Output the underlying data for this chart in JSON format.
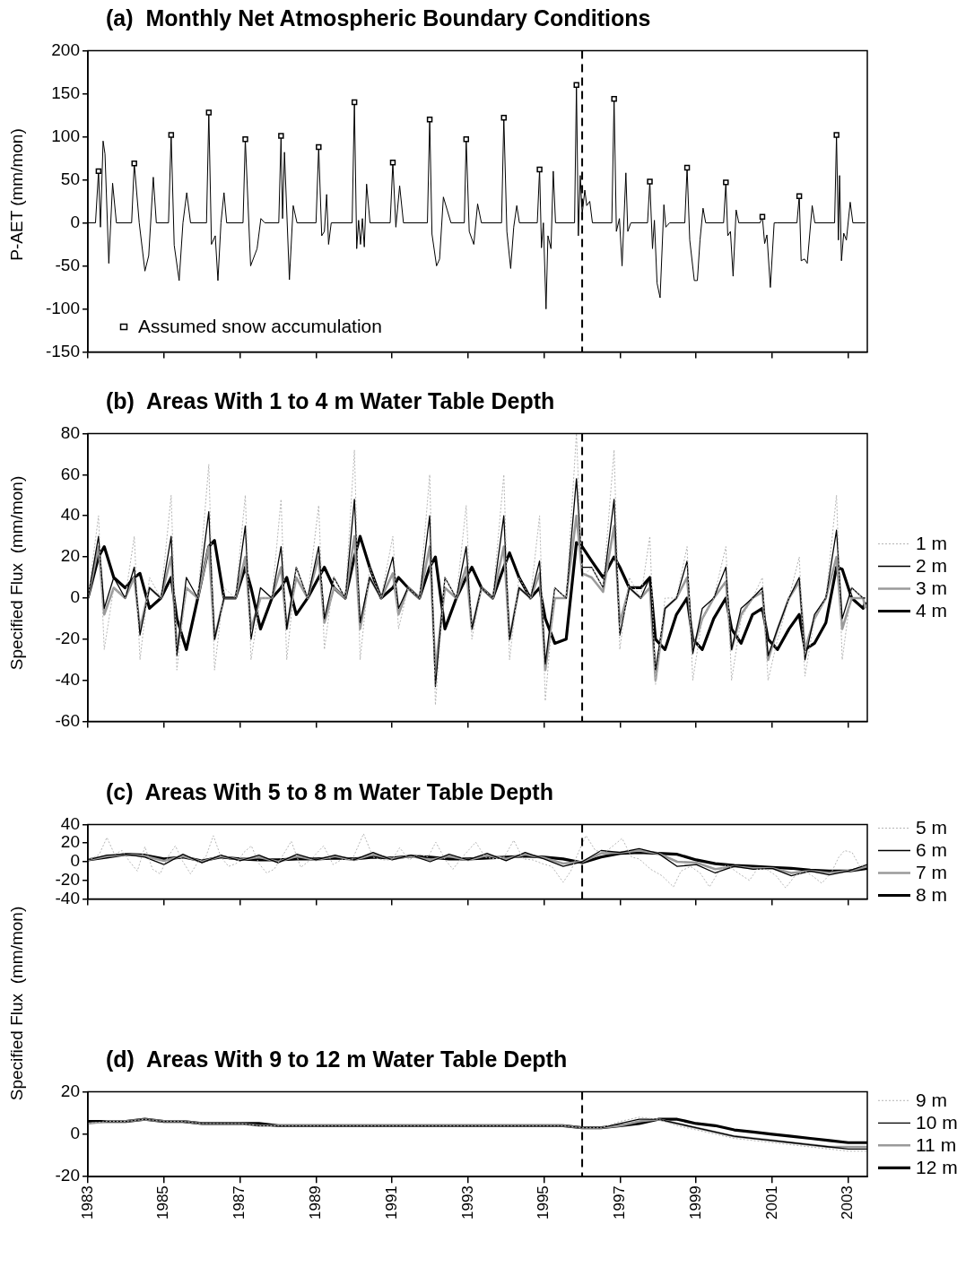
{
  "chart_data": [
    {
      "type": "line",
      "title": "(a)  Monthly Net Atmospheric Boundary Conditions",
      "ylabel": "P-AET (mm/mon)",
      "xlim": [
        1983,
        2003.5
      ],
      "xticks": [
        1983,
        1985,
        1987,
        1989,
        1991,
        1993,
        1995,
        1997,
        1999,
        2001,
        2003
      ],
      "ylim": [
        -150,
        200
      ],
      "yticks": [
        -150,
        -100,
        -50,
        0,
        50,
        100,
        150,
        200
      ],
      "tick_labels": "y",
      "legend": "bottom left",
      "ref_lines": [
        {
          "axis": "x",
          "value": 1996,
          "line_style": "dashed",
          "color": "#000000"
        }
      ],
      "series": [
        {
          "type": "line",
          "color": "#000000",
          "x": [
            1983.0,
            1983.2,
            1983.28,
            1983.33,
            1983.4,
            1983.45,
            1983.55,
            1983.65,
            1983.75,
            1984.15,
            1984.22,
            1984.35,
            1984.5,
            1984.6,
            1984.72,
            1984.8,
            1985.12,
            1985.19,
            1985.27,
            1985.4,
            1985.5,
            1985.6,
            1985.7,
            1986.12,
            1986.18,
            1986.25,
            1986.35,
            1986.42,
            1986.5,
            1986.58,
            1986.65,
            1987.08,
            1987.14,
            1987.28,
            1987.45,
            1987.55,
            1987.65,
            1988.02,
            1988.08,
            1988.12,
            1988.17,
            1988.3,
            1988.4,
            1988.5,
            1989.0,
            1989.07,
            1989.15,
            1989.22,
            1989.28,
            1989.33,
            1989.4,
            1989.95,
            1990.01,
            1990.07,
            1990.12,
            1990.17,
            1990.22,
            1990.27,
            1990.33,
            1990.42,
            1990.95,
            1991.02,
            1991.1,
            1991.2,
            1991.3,
            1991.93,
            1991.99,
            1992.05,
            1992.17,
            1992.25,
            1992.35,
            1992.45,
            1992.55,
            1992.9,
            1992.95,
            1993.03,
            1993.15,
            1993.25,
            1993.35,
            1993.88,
            1993.94,
            1994.02,
            1994.12,
            1994.2,
            1994.28,
            1994.35,
            1994.82,
            1994.88,
            1994.93,
            1994.98,
            1995.05,
            1995.1,
            1995.18,
            1995.24,
            1995.3,
            1995.8,
            1995.85,
            1995.9,
            1995.95,
            1996.0,
            1996.07,
            1996.12,
            1996.2,
            1996.27,
            1996.78,
            1996.84,
            1996.9,
            1996.98,
            1997.05,
            1997.15,
            1997.2,
            1997.28,
            1997.72,
            1997.78,
            1997.85,
            1997.9,
            1997.97,
            1998.05,
            1998.15,
            1998.2,
            1998.3,
            1998.7,
            1998.76,
            1998.83,
            1998.95,
            1999.03,
            1999.1,
            1999.18,
            1999.25,
            1999.72,
            1999.78,
            1999.83,
            1999.9,
            1999.97,
            2000.05,
            2000.12,
            2000.68,
            2000.74,
            2000.8,
            2000.86,
            2000.95,
            2001.05,
            2001.12,
            2001.65,
            2001.71,
            2001.76,
            2001.85,
            2001.92,
            2002.05,
            2002.12,
            2002.64,
            2002.69,
            2002.74,
            2002.77,
            2002.82,
            2002.88,
            2002.95,
            2003.05,
            2003.12,
            2003.45
          ],
          "values": [
            0,
            0,
            60,
            -5,
            95,
            80,
            -47,
            46,
            0,
            0,
            69,
            0,
            -56,
            -38,
            53,
            0,
            0,
            102,
            -26,
            -67,
            0,
            35,
            0,
            0,
            128,
            -25,
            -15,
            -67,
            0,
            35,
            0,
            0,
            97,
            -50,
            -30,
            5,
            0,
            0,
            101,
            5,
            82,
            -66,
            20,
            0,
            0,
            88,
            -15,
            -10,
            33,
            -25,
            0,
            0,
            140,
            -30,
            3,
            -25,
            5,
            -28,
            45,
            0,
            0,
            70,
            -5,
            43,
            0,
            0,
            120,
            -13,
            -50,
            -42,
            30,
            15,
            0,
            0,
            97,
            -10,
            -25,
            22,
            0,
            0,
            122,
            -10,
            -53,
            -5,
            20,
            0,
            0,
            62,
            -29,
            0,
            -100,
            -15,
            -30,
            60,
            0,
            0,
            160,
            -15,
            55,
            10,
            38,
            20,
            25,
            0,
            0,
            144,
            -10,
            5,
            -50,
            58,
            -10,
            0,
            0,
            48,
            -30,
            3,
            -70,
            -87,
            21,
            -5,
            0,
            0,
            64,
            -20,
            -67,
            -67,
            -20,
            17,
            0,
            0,
            47,
            -15,
            -10,
            -62,
            15,
            0,
            0,
            7,
            -24,
            -14,
            -75,
            0,
            0,
            0,
            31,
            -44,
            -42,
            -47,
            20,
            0,
            0,
            102,
            -20,
            55,
            -44,
            -12,
            -20,
            24,
            0,
            0
          ]
        },
        {
          "type": "scatter",
          "name": "Assumed snow accumulation",
          "color": "#000000",
          "marker": "square",
          "x": [
            1983.28,
            1984.22,
            1985.19,
            1986.18,
            1987.14,
            1988.08,
            1989.07,
            1990.01,
            1991.02,
            1991.99,
            1992.95,
            1993.94,
            1994.88,
            1995.85,
            1996.84,
            1997.78,
            1998.76,
            1999.78,
            2000.74,
            2001.71,
            2002.69
          ],
          "values": [
            60,
            69,
            102,
            128,
            97,
            101,
            88,
            140,
            70,
            120,
            97,
            122,
            62,
            160,
            144,
            48,
            64,
            47,
            7,
            31,
            102
          ]
        }
      ]
    },
    {
      "type": "line",
      "title": "(b)  Areas With 1 to 4 m Water Table Depth",
      "ylabel": "Specified Flux  (mm/mon)",
      "xlim": [
        1983,
        2003.5
      ],
      "xticks": [
        1983,
        1985,
        1987,
        1989,
        1991,
        1993,
        1995,
        1997,
        1999,
        2001,
        2003
      ],
      "ylim": [
        -60,
        80
      ],
      "yticks": [
        -60,
        -40,
        -20,
        0,
        20,
        40,
        60,
        80
      ],
      "tick_labels": "y",
      "legend": "right",
      "ref_lines": [
        {
          "axis": "x",
          "value": 1996,
          "line_style": "dashed",
          "color": "#000000"
        }
      ],
      "x": [
        1983.0,
        1983.28,
        1983.43,
        1983.68,
        1983.98,
        1984.22,
        1984.37,
        1984.62,
        1984.92,
        1985.19,
        1985.34,
        1985.59,
        1985.89,
        1986.18,
        1986.33,
        1986.58,
        1986.88,
        1987.14,
        1987.29,
        1987.54,
        1987.84,
        1988.08,
        1988.23,
        1988.48,
        1988.78,
        1989.07,
        1989.22,
        1989.47,
        1989.77,
        1990.01,
        1990.16,
        1990.41,
        1990.71,
        1991.02,
        1991.17,
        1991.42,
        1991.72,
        1991.99,
        1992.14,
        1992.39,
        1992.69,
        1992.95,
        1993.1,
        1993.35,
        1993.65,
        1993.94,
        1994.09,
        1994.34,
        1994.64,
        1994.88,
        1995.03,
        1995.28,
        1995.58,
        1995.85,
        1996.0,
        1996.25,
        1996.55,
        1996.84,
        1996.99,
        1997.24,
        1997.54,
        1997.78,
        1997.93,
        1998.18,
        1998.48,
        1998.76,
        1998.91,
        1999.16,
        1999.46,
        1999.78,
        1999.93,
        2000.18,
        2000.48,
        2000.74,
        2000.89,
        2001.14,
        2001.44,
        2001.71,
        2001.86,
        2002.11,
        2002.41,
        2002.69,
        2002.84,
        2003.09,
        2003.39,
        2003.45
      ],
      "series": [
        {
          "name": "1 m",
          "color": "#b5b5b5",
          "line_style": "dotted",
          "values": [
            0,
            40,
            -25,
            5,
            0,
            30,
            -30,
            10,
            0,
            50,
            -35,
            5,
            0,
            65,
            -35,
            5,
            0,
            50,
            -30,
            0,
            0,
            48,
            -30,
            15,
            0,
            45,
            -25,
            10,
            0,
            72,
            -30,
            15,
            0,
            30,
            -15,
            5,
            0,
            60,
            -52,
            10,
            0,
            45,
            -20,
            5,
            0,
            60,
            -30,
            10,
            0,
            40,
            -50,
            5,
            0,
            80,
            10,
            15,
            5,
            72,
            -25,
            10,
            0,
            30,
            -42,
            0,
            0,
            25,
            -40,
            -10,
            0,
            25,
            -40,
            -10,
            0,
            10,
            -40,
            -20,
            0,
            20,
            -38,
            -10,
            0,
            50,
            -30,
            5,
            0,
            0
          ]
        },
        {
          "name": "2 m",
          "color": "#000000",
          "values": [
            0,
            30,
            -5,
            10,
            0,
            15,
            -18,
            5,
            0,
            30,
            -28,
            10,
            0,
            42,
            -20,
            0,
            0,
            35,
            -20,
            5,
            0,
            25,
            -15,
            15,
            0,
            25,
            -10,
            10,
            0,
            48,
            -12,
            10,
            0,
            20,
            -5,
            5,
            0,
            40,
            -43,
            10,
            0,
            25,
            -15,
            5,
            0,
            40,
            -20,
            5,
            0,
            18,
            -32,
            5,
            0,
            58,
            15,
            15,
            5,
            48,
            -18,
            5,
            0,
            10,
            -35,
            -5,
            0,
            18,
            -27,
            -5,
            0,
            15,
            -25,
            -5,
            0,
            5,
            -28,
            -15,
            0,
            10,
            -30,
            -8,
            0,
            33,
            -10,
            5,
            0,
            0
          ]
        },
        {
          "name": "3 m",
          "color": "#9a9a9a",
          "values": [
            0,
            25,
            -8,
            5,
            0,
            10,
            -15,
            5,
            0,
            20,
            -25,
            5,
            0,
            25,
            -20,
            0,
            0,
            20,
            -15,
            0,
            0,
            15,
            -15,
            10,
            0,
            20,
            -12,
            5,
            0,
            30,
            -15,
            10,
            0,
            12,
            -8,
            5,
            0,
            25,
            -35,
            5,
            0,
            15,
            -15,
            5,
            0,
            25,
            -20,
            5,
            0,
            12,
            -35,
            0,
            0,
            40,
            12,
            10,
            3,
            35,
            -12,
            5,
            0,
            5,
            -40,
            -5,
            0,
            10,
            -25,
            -10,
            0,
            8,
            -25,
            -8,
            0,
            3,
            -30,
            -15,
            0,
            8,
            -25,
            -10,
            0,
            20,
            -15,
            0,
            0,
            -5
          ]
        },
        {
          "name": "4 m",
          "color": "#000000",
          "values": [
            0,
            20,
            25,
            10,
            5,
            10,
            12,
            -5,
            0,
            10,
            -10,
            -25,
            0,
            25,
            28,
            0,
            0,
            15,
            5,
            -15,
            0,
            5,
            10,
            -8,
            0,
            10,
            15,
            5,
            0,
            20,
            30,
            15,
            0,
            5,
            10,
            5,
            0,
            15,
            20,
            -15,
            0,
            10,
            15,
            5,
            0,
            15,
            22,
            10,
            0,
            5,
            -10,
            -22,
            -20,
            27,
            25,
            18,
            10,
            20,
            15,
            5,
            5,
            10,
            -20,
            -25,
            -8,
            0,
            -20,
            -25,
            -10,
            0,
            -15,
            -22,
            -8,
            -5,
            -20,
            -25,
            -15,
            -8,
            -25,
            -22,
            -12,
            15,
            14,
            0,
            -5,
            -2
          ]
        }
      ]
    },
    {
      "type": "line",
      "title": "(c)  Areas With 5 to 8 m Water Table Depth",
      "ylabel": "Specified Flux  (mm/mon)",
      "xlim": [
        1983,
        2003.5
      ],
      "xticks": [
        1983,
        1985,
        1987,
        1989,
        1991,
        1993,
        1995,
        1997,
        1999,
        2001,
        2003
      ],
      "ylim": [
        -40,
        40
      ],
      "yticks": [
        -40,
        -20,
        0,
        20,
        40
      ],
      "tick_labels": "y",
      "legend": "right",
      "ref_lines": [
        {
          "axis": "x",
          "value": 1996,
          "line_style": "dashed",
          "color": "#000000"
        }
      ],
      "x": [
        1983.0,
        1983.5,
        1984.0,
        1984.5,
        1985.0,
        1985.5,
        1986.0,
        1986.5,
        1987.0,
        1987.5,
        1988.0,
        1988.5,
        1989.0,
        1989.5,
        1990.0,
        1990.5,
        1991.0,
        1991.5,
        1992.0,
        1992.5,
        1993.0,
        1993.5,
        1994.0,
        1994.5,
        1995.0,
        1995.5,
        1996.0,
        1996.5,
        1997.0,
        1997.5,
        1998.0,
        1998.5,
        1999.0,
        1999.5,
        2000.0,
        2000.5,
        2001.0,
        2001.5,
        2002.0,
        2002.5,
        2003.0,
        2003.5
      ],
      "series": [
        {
          "name": "5 m",
          "color": "#b5b5b5",
          "line_style": "dotted",
          "x": [
            1983.0,
            1983.3,
            1983.5,
            1983.7,
            1983.9,
            1984.1,
            1984.3,
            1984.5,
            1984.7,
            1984.9,
            1985.1,
            1985.3,
            1985.5,
            1985.7,
            1985.9,
            1986.1,
            1986.3,
            1986.5,
            1986.7,
            1986.9,
            1987.1,
            1987.3,
            1987.5,
            1987.7,
            1987.9,
            1988.1,
            1988.35,
            1988.6,
            1988.85,
            1989.2,
            1989.45,
            1989.7,
            1989.95,
            1990.25,
            1990.5,
            1990.75,
            1991.0,
            1991.2,
            1991.45,
            1991.7,
            1991.95,
            1992.15,
            1992.4,
            1992.6,
            1992.85,
            1993.2,
            1993.45,
            1993.7,
            1993.95,
            1994.2,
            1994.45,
            1994.7,
            1994.95,
            1995.2,
            1995.5,
            1995.7,
            1995.9,
            1996.1,
            1996.35,
            1996.6,
            1997.05,
            1997.3,
            1997.5,
            1997.8,
            1998.1,
            1998.4,
            1998.6,
            1998.85,
            1999.1,
            1999.35,
            1999.6,
            1999.8,
            2000.1,
            2000.4,
            2000.6,
            2000.85,
            2001.1,
            2001.35,
            2001.6,
            2001.85,
            2002.05,
            2002.3,
            2002.55,
            2002.75,
            2002.9,
            2003.1,
            2003.3,
            2003.45
          ],
          "values": [
            1,
            8,
            26,
            8,
            12,
            0,
            -10,
            16,
            -8,
            -13,
            5,
            17,
            0,
            -13,
            0,
            5,
            28,
            5,
            -5,
            -2,
            10,
            17,
            -2,
            -12,
            -8,
            5,
            22,
            -6,
            2,
            17,
            -3,
            3,
            2,
            30,
            5,
            2,
            2,
            15,
            2,
            8,
            5,
            21,
            2,
            -8,
            5,
            21,
            5,
            3,
            5,
            23,
            3,
            2,
            -2,
            -5,
            -22,
            -10,
            10,
            28,
            12,
            10,
            25,
            5,
            3,
            -8,
            -15,
            -27,
            -10,
            -5,
            -12,
            -27,
            -10,
            -3,
            -12,
            -20,
            -8,
            -8,
            -15,
            -28,
            -15,
            -10,
            -15,
            -23,
            -12,
            5,
            12,
            10,
            -5,
            -3
          ]
        },
        {
          "name": "6 m",
          "color": "#000000",
          "values": [
            2,
            7,
            8,
            5,
            -3,
            8,
            -1,
            7,
            1,
            7,
            -1,
            8,
            2,
            7,
            2,
            10,
            2,
            7,
            0,
            8,
            2,
            9,
            1,
            10,
            3,
            -5,
            0,
            12,
            10,
            14,
            9,
            -5,
            -3,
            -12,
            -5,
            -8,
            -7,
            -15,
            -10,
            -14,
            -10,
            -3
          ]
        },
        {
          "name": "7 m",
          "color": "#9a9a9a",
          "values": [
            2,
            6,
            8,
            6,
            1,
            6,
            0,
            6,
            2,
            5,
            0,
            6,
            2,
            6,
            2,
            8,
            3,
            6,
            2,
            6,
            2,
            7,
            3,
            8,
            4,
            -2,
            0,
            9,
            10,
            12,
            9,
            0,
            -1,
            -8,
            -5,
            -7,
            -7,
            -12,
            -10,
            -12,
            -10,
            -5
          ]
        },
        {
          "name": "8 m",
          "color": "#000000",
          "values": [
            2,
            5,
            8,
            7,
            3,
            5,
            1,
            5,
            3,
            2,
            2,
            3,
            3,
            4,
            3,
            5,
            4,
            6,
            5,
            3,
            3,
            4,
            5,
            6,
            5,
            3,
            -1,
            5,
            9,
            10,
            9,
            8,
            2,
            -2,
            -4,
            -5,
            -6,
            -7,
            -9,
            -10,
            -10,
            -7
          ]
        }
      ]
    },
    {
      "type": "line",
      "title": "(d)  Areas With 9 to 12 m Water Table Depth",
      "xlim": [
        1983,
        2003.5
      ],
      "xticks": [
        1983,
        1985,
        1987,
        1989,
        1991,
        1993,
        1995,
        1997,
        1999,
        2001,
        2003
      ],
      "ylim": [
        -20,
        20
      ],
      "yticks": [
        -20,
        0,
        20
      ],
      "legend": "right",
      "ref_lines": [
        {
          "axis": "x",
          "value": 1996,
          "line_style": "dashed",
          "color": "#000000"
        }
      ],
      "x": [
        1983.0,
        1983.5,
        1984.0,
        1984.5,
        1985.0,
        1985.5,
        1986.0,
        1986.5,
        1987.0,
        1987.5,
        1988.0,
        1988.5,
        1989.0,
        1989.5,
        1990.0,
        1990.5,
        1991.0,
        1991.5,
        1992.0,
        1992.5,
        1993.0,
        1993.5,
        1994.0,
        1994.5,
        1995.0,
        1995.5,
        1996.0,
        1996.5,
        1997.0,
        1997.5,
        1998.0,
        1998.5,
        1999.0,
        1999.5,
        2000.0,
        2000.5,
        2001.0,
        2001.5,
        2002.0,
        2002.5,
        2003.0,
        2003.5
      ],
      "series": [
        {
          "name": "9 m",
          "color": "#b5b5b5",
          "line_style": "dotted",
          "values": [
            5,
            6,
            6,
            7,
            6,
            6,
            5,
            5,
            5,
            4,
            4,
            4,
            4,
            4,
            4,
            4,
            4,
            4,
            4,
            4,
            4,
            4,
            4,
            4,
            4,
            4,
            3,
            3,
            6,
            8,
            7,
            4,
            2,
            0,
            -2,
            -3,
            -4,
            -5,
            -6,
            -7,
            -8,
            -8
          ]
        },
        {
          "name": "10 m",
          "color": "#000000",
          "values": [
            6,
            6,
            6,
            7,
            6,
            6,
            5,
            5,
            5,
            4,
            4,
            4,
            4,
            4,
            4,
            4,
            4,
            4,
            4,
            4,
            4,
            4,
            4,
            4,
            4,
            4,
            3,
            3,
            5,
            7,
            7,
            5,
            3,
            1,
            -1,
            -2,
            -3,
            -4,
            -5,
            -6,
            -7,
            -7
          ]
        },
        {
          "name": "11 m",
          "color": "#9a9a9a",
          "values": [
            5,
            6,
            6,
            7,
            6,
            6,
            5,
            5,
            5,
            4,
            4,
            4,
            4,
            4,
            4,
            4,
            4,
            4,
            4,
            4,
            4,
            4,
            4,
            4,
            4,
            4,
            3,
            3,
            4,
            6,
            7,
            5,
            3,
            1,
            -1,
            -2,
            -3,
            -4,
            -5,
            -6,
            -6,
            -6
          ]
        },
        {
          "name": "12 m",
          "color": "#000000",
          "values": [
            6,
            6,
            6,
            7,
            6,
            6,
            5,
            5,
            5,
            5,
            4,
            4,
            4,
            4,
            4,
            4,
            4,
            4,
            4,
            4,
            4,
            4,
            4,
            4,
            4,
            4,
            3,
            3,
            4,
            5,
            7,
            7,
            5,
            4,
            2,
            1,
            0,
            -1,
            -2,
            -3,
            -4,
            -4
          ]
        }
      ]
    }
  ]
}
